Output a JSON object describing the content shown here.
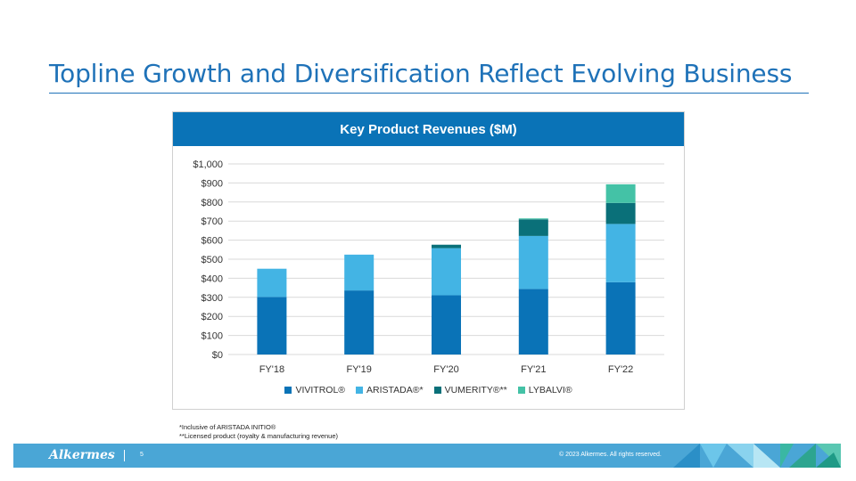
{
  "slide": {
    "title": "Topline Growth and Diversification Reflect Evolving Business",
    "page_number": "5",
    "copyright": "© 2023 Alkermes. All rights reserved.",
    "logo_text": "Alkermes"
  },
  "footnotes": [
    "*Inclusive of ARISTADA INITIO®",
    "**Licensed product (royalty & manufacturing revenue)"
  ],
  "colors": {
    "vivitrol": "#0a73b7",
    "aristada": "#43b4e4",
    "vumerity": "#0a7079",
    "lybalvi": "#44c2a6",
    "header": "#0a73b7"
  },
  "chart_data": {
    "type": "bar",
    "stacked": true,
    "title": "Key Product Revenues ($M)",
    "categories": [
      "FY'18",
      "FY'19",
      "FY'20",
      "FY'21",
      "FY'22"
    ],
    "ylim": [
      0,
      1000
    ],
    "yticks": [
      0,
      100,
      200,
      300,
      400,
      500,
      600,
      700,
      800,
      900,
      1000
    ],
    "ytick_labels": [
      "$0",
      "$100",
      "$200",
      "$300",
      "$400",
      "$500",
      "$600",
      "$700",
      "$800",
      "$900",
      "$1,000"
    ],
    "grid": true,
    "legend_position": "bottom",
    "series": [
      {
        "name": "VIVITROL®",
        "key": "vivitrol",
        "values": [
          302,
          336,
          311,
          344,
          379
        ]
      },
      {
        "name": "ARISTADA®*",
        "key": "aristada",
        "values": [
          148,
          188,
          247,
          278,
          306
        ]
      },
      {
        "name": "VUMERITY®**",
        "key": "vumerity",
        "values": [
          0,
          0,
          18,
          87,
          110
        ]
      },
      {
        "name": "LYBALVI®",
        "key": "lybalvi",
        "values": [
          0,
          0,
          0,
          5,
          98
        ]
      }
    ]
  }
}
